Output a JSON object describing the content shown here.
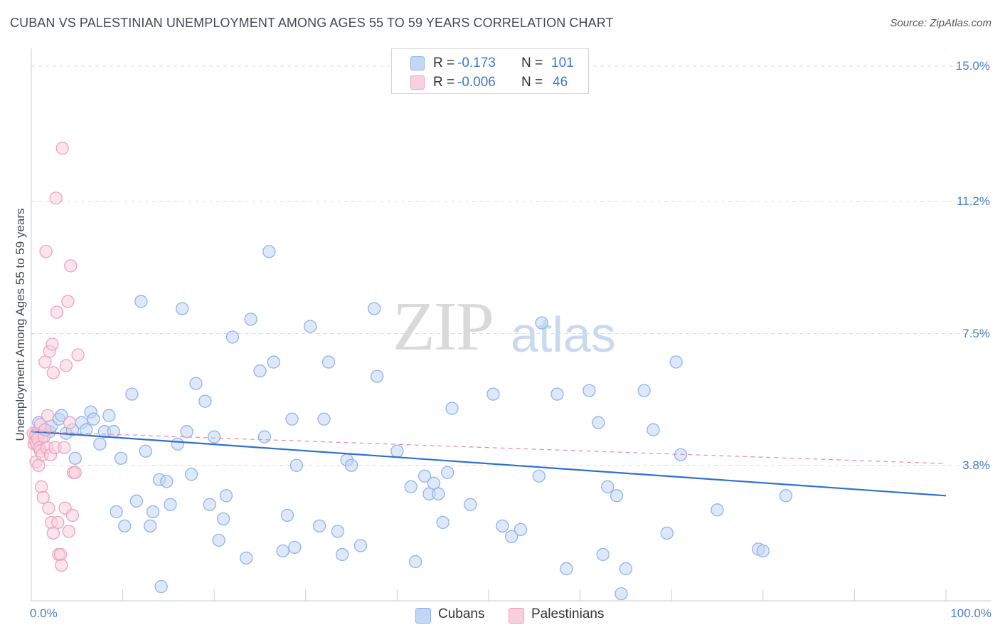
{
  "chart_data": {
    "type": "scatter",
    "title": "CUBAN VS PALESTINIAN UNEMPLOYMENT AMONG AGES 55 TO 59 YEARS CORRELATION CHART",
    "source": "Source: ZipAtlas.com",
    "ylabel": "Unemployment Among Ages 55 to 59 years",
    "xlabel": "",
    "xlim": [
      0,
      100
    ],
    "ylim": [
      0,
      15.5
    ],
    "y_ticks": [
      {
        "value": 3.8,
        "label": "3.8%"
      },
      {
        "value": 7.5,
        "label": "7.5%"
      },
      {
        "value": 11.2,
        "label": "11.2%"
      },
      {
        "value": 15.0,
        "label": "15.0%"
      }
    ],
    "x_tick_labels": {
      "min": "0.0%",
      "max": "100.0%"
    },
    "watermark": {
      "zip": "ZIP",
      "atlas": "atlas"
    },
    "legend": {
      "r_label": "R =",
      "n_label": "N =",
      "entries": [
        {
          "name": "Cubans",
          "r": "-0.173",
          "n": "101"
        },
        {
          "name": "Palestinians",
          "r": "-0.006",
          "n": "46"
        }
      ]
    },
    "series": [
      {
        "name": "Cubans",
        "color": "#8fb4ea",
        "fill": "#c3d6f4",
        "trend": {
          "x": [
            0,
            100
          ],
          "y": [
            4.75,
            2.95
          ],
          "color": "#2f6fd0"
        },
        "points": [
          [
            0.5,
            4.7
          ],
          [
            0.8,
            5.0
          ],
          [
            1.2,
            4.6
          ],
          [
            1.5,
            4.8
          ],
          [
            2.0,
            4.75
          ],
          [
            2.2,
            4.9
          ],
          [
            3.0,
            5.1
          ],
          [
            3.3,
            5.2
          ],
          [
            3.8,
            4.7
          ],
          [
            4.5,
            4.8
          ],
          [
            4.8,
            4.0
          ],
          [
            5.5,
            5.0
          ],
          [
            6.0,
            4.8
          ],
          [
            6.5,
            5.3
          ],
          [
            6.8,
            5.1
          ],
          [
            7.5,
            4.4
          ],
          [
            8.0,
            4.75
          ],
          [
            8.5,
            5.2
          ],
          [
            9.0,
            4.75
          ],
          [
            9.3,
            2.5
          ],
          [
            9.8,
            4.0
          ],
          [
            10.2,
            2.1
          ],
          [
            11.0,
            5.8
          ],
          [
            11.5,
            2.8
          ],
          [
            12.0,
            8.4
          ],
          [
            12.5,
            4.2
          ],
          [
            13.0,
            2.1
          ],
          [
            13.3,
            2.5
          ],
          [
            14.0,
            3.4
          ],
          [
            14.2,
            0.4
          ],
          [
            14.8,
            3.35
          ],
          [
            15.2,
            2.7
          ],
          [
            16.0,
            4.4
          ],
          [
            16.5,
            8.2
          ],
          [
            17.0,
            4.75
          ],
          [
            17.5,
            3.55
          ],
          [
            18.0,
            6.1
          ],
          [
            19.0,
            5.6
          ],
          [
            19.5,
            2.7
          ],
          [
            20.0,
            4.6
          ],
          [
            20.5,
            1.7
          ],
          [
            21.0,
            2.3
          ],
          [
            21.3,
            2.95
          ],
          [
            22.0,
            7.4
          ],
          [
            23.5,
            1.2
          ],
          [
            24.0,
            7.9
          ],
          [
            25.0,
            6.45
          ],
          [
            25.5,
            4.6
          ],
          [
            26.0,
            9.8
          ],
          [
            26.5,
            6.7
          ],
          [
            27.5,
            1.4
          ],
          [
            28.0,
            2.4
          ],
          [
            28.5,
            5.1
          ],
          [
            28.8,
            1.5
          ],
          [
            29.0,
            3.8
          ],
          [
            30.5,
            7.7
          ],
          [
            31.5,
            2.1
          ],
          [
            32.0,
            5.1
          ],
          [
            32.5,
            6.7
          ],
          [
            33.5,
            1.95
          ],
          [
            34.0,
            1.3
          ],
          [
            34.5,
            3.95
          ],
          [
            35.0,
            3.8
          ],
          [
            36.0,
            1.55
          ],
          [
            37.5,
            8.2
          ],
          [
            37.8,
            6.3
          ],
          [
            40.0,
            4.2
          ],
          [
            41.5,
            3.2
          ],
          [
            42.0,
            1.1
          ],
          [
            43.0,
            3.5
          ],
          [
            43.5,
            3.0
          ],
          [
            44.0,
            3.3
          ],
          [
            44.5,
            3.0
          ],
          [
            45.0,
            2.2
          ],
          [
            46.0,
            5.4
          ],
          [
            48.0,
            2.7
          ],
          [
            50.5,
            5.8
          ],
          [
            51.5,
            2.1
          ],
          [
            52.5,
            1.8
          ],
          [
            53.5,
            2.0
          ],
          [
            55.5,
            3.5
          ],
          [
            55.8,
            7.8
          ],
          [
            57.5,
            5.8
          ],
          [
            58.5,
            0.9
          ],
          [
            61.0,
            5.9
          ],
          [
            62.0,
            5.0
          ],
          [
            62.5,
            1.3
          ],
          [
            63.0,
            3.2
          ],
          [
            64.0,
            2.95
          ],
          [
            64.5,
            0.2
          ],
          [
            65.0,
            0.9
          ],
          [
            67.0,
            5.9
          ],
          [
            68.0,
            4.8
          ],
          [
            69.5,
            1.9
          ],
          [
            70.5,
            6.7
          ],
          [
            71.0,
            4.1
          ],
          [
            75.0,
            2.55
          ],
          [
            79.5,
            1.45
          ],
          [
            80.0,
            1.4
          ],
          [
            82.5,
            2.95
          ],
          [
            45.5,
            3.6
          ]
        ]
      },
      {
        "name": "Palestinians",
        "color": "#f0a1bd",
        "fill": "#f8cfdd",
        "trend": {
          "x": [
            0,
            100
          ],
          "y": [
            4.75,
            3.85
          ],
          "color": "#e88aaa",
          "dashed": true
        },
        "points": [
          [
            0.2,
            4.7
          ],
          [
            0.3,
            4.4
          ],
          [
            0.4,
            4.5
          ],
          [
            0.5,
            3.9
          ],
          [
            0.5,
            4.65
          ],
          [
            0.6,
            4.4
          ],
          [
            0.7,
            4.55
          ],
          [
            0.8,
            3.8
          ],
          [
            0.9,
            4.3
          ],
          [
            1.0,
            4.2
          ],
          [
            1.0,
            4.95
          ],
          [
            1.1,
            3.2
          ],
          [
            1.2,
            4.1
          ],
          [
            1.3,
            2.9
          ],
          [
            1.4,
            4.6
          ],
          [
            1.5,
            6.7
          ],
          [
            1.5,
            4.8
          ],
          [
            1.6,
            9.8
          ],
          [
            1.7,
            4.3
          ],
          [
            1.8,
            5.2
          ],
          [
            1.9,
            2.6
          ],
          [
            2.0,
            7.0
          ],
          [
            2.1,
            4.1
          ],
          [
            2.2,
            2.2
          ],
          [
            2.3,
            7.2
          ],
          [
            2.4,
            1.9
          ],
          [
            2.4,
            6.4
          ],
          [
            2.6,
            4.3
          ],
          [
            2.7,
            11.3
          ],
          [
            2.8,
            8.1
          ],
          [
            2.9,
            2.2
          ],
          [
            3.0,
            1.3
          ],
          [
            3.2,
            1.3
          ],
          [
            3.3,
            1.0
          ],
          [
            3.4,
            12.7
          ],
          [
            3.6,
            4.3
          ],
          [
            3.7,
            2.6
          ],
          [
            3.8,
            6.6
          ],
          [
            4.0,
            8.4
          ],
          [
            4.1,
            1.95
          ],
          [
            4.2,
            5.0
          ],
          [
            4.3,
            9.4
          ],
          [
            4.5,
            2.4
          ],
          [
            4.6,
            3.6
          ],
          [
            4.8,
            3.6
          ],
          [
            5.1,
            6.9
          ]
        ]
      }
    ]
  }
}
